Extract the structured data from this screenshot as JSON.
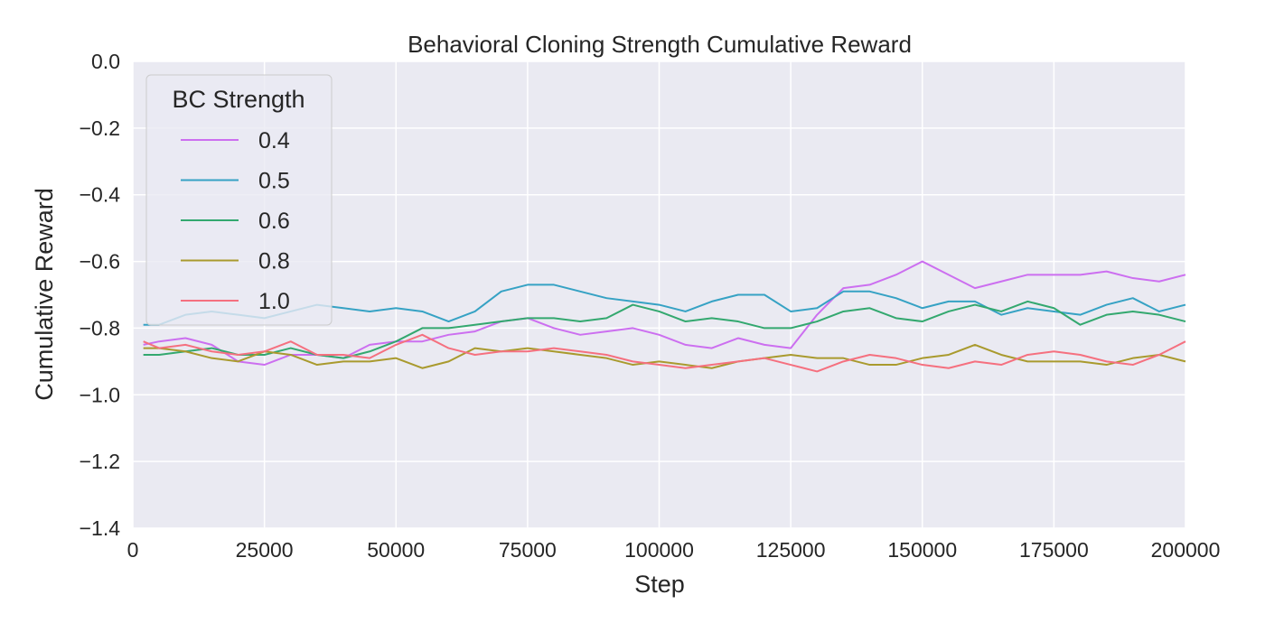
{
  "chart_data": {
    "type": "line",
    "title": "Behavioral Cloning Strength Cumulative Reward",
    "xlabel": "Step",
    "ylabel": "Cumulative Reward",
    "xlim": [
      0,
      200000
    ],
    "ylim": [
      -1.4,
      0.0
    ],
    "xticks": [
      0,
      25000,
      50000,
      75000,
      100000,
      125000,
      150000,
      175000,
      200000
    ],
    "xtick_labels": [
      "0",
      "25000",
      "50000",
      "75000",
      "100000",
      "125000",
      "150000",
      "175000",
      "200000"
    ],
    "yticks": [
      0.0,
      -0.2,
      -0.4,
      -0.6,
      -0.8,
      -1.0,
      -1.2,
      -1.4
    ],
    "ytick_labels": [
      "0.0",
      "−0.2",
      "−0.4",
      "−0.6",
      "−0.8",
      "−1.0",
      "−1.2",
      "−1.4"
    ],
    "grid": true,
    "legend": {
      "title": "BC Strength",
      "placement": "top-left"
    },
    "x": [
      2000,
      5000,
      10000,
      15000,
      20000,
      25000,
      30000,
      35000,
      40000,
      45000,
      50000,
      55000,
      60000,
      65000,
      70000,
      75000,
      80000,
      85000,
      90000,
      95000,
      100000,
      105000,
      110000,
      115000,
      120000,
      125000,
      130000,
      135000,
      140000,
      145000,
      150000,
      155000,
      160000,
      165000,
      170000,
      175000,
      180000,
      185000,
      190000,
      195000,
      200000
    ],
    "series": [
      {
        "name": "0.4",
        "color": "#cc6ff0",
        "values": [
          -0.85,
          -0.84,
          -0.83,
          -0.85,
          -0.9,
          -0.91,
          -0.88,
          -0.88,
          -0.89,
          -0.85,
          -0.84,
          -0.84,
          -0.82,
          -0.81,
          -0.78,
          -0.77,
          -0.8,
          -0.82,
          -0.81,
          -0.8,
          -0.82,
          -0.85,
          -0.86,
          -0.83,
          -0.85,
          -0.86,
          -0.76,
          -0.68,
          -0.67,
          -0.64,
          -0.6,
          -0.64,
          -0.68,
          -0.66,
          -0.64,
          -0.64,
          -0.64,
          -0.63,
          -0.65,
          -0.66,
          -0.64
        ]
      },
      {
        "name": "0.5",
        "color": "#36a2c4",
        "values": [
          -0.79,
          -0.79,
          -0.76,
          -0.75,
          -0.76,
          -0.77,
          -0.75,
          -0.73,
          -0.74,
          -0.75,
          -0.74,
          -0.75,
          -0.78,
          -0.75,
          -0.69,
          -0.67,
          -0.67,
          -0.69,
          -0.71,
          -0.72,
          -0.73,
          -0.75,
          -0.72,
          -0.7,
          -0.7,
          -0.75,
          -0.74,
          -0.69,
          -0.69,
          -0.71,
          -0.74,
          -0.72,
          -0.72,
          -0.76,
          -0.74,
          -0.75,
          -0.76,
          -0.73,
          -0.71,
          -0.75,
          -0.73
        ]
      },
      {
        "name": "0.6",
        "color": "#33a86f",
        "values": [
          -0.88,
          -0.88,
          -0.87,
          -0.86,
          -0.88,
          -0.88,
          -0.86,
          -0.88,
          -0.89,
          -0.87,
          -0.84,
          -0.8,
          -0.8,
          -0.79,
          -0.78,
          -0.77,
          -0.77,
          -0.78,
          -0.77,
          -0.73,
          -0.75,
          -0.78,
          -0.77,
          -0.78,
          -0.8,
          -0.8,
          -0.78,
          -0.75,
          -0.74,
          -0.77,
          -0.78,
          -0.75,
          -0.73,
          -0.75,
          -0.72,
          -0.74,
          -0.79,
          -0.76,
          -0.75,
          -0.76,
          -0.78
        ]
      },
      {
        "name": "0.8",
        "color": "#a99a2e",
        "values": [
          -0.86,
          -0.86,
          -0.87,
          -0.89,
          -0.9,
          -0.87,
          -0.88,
          -0.91,
          -0.9,
          -0.9,
          -0.89,
          -0.92,
          -0.9,
          -0.86,
          -0.87,
          -0.86,
          -0.87,
          -0.88,
          -0.89,
          -0.91,
          -0.9,
          -0.91,
          -0.92,
          -0.9,
          -0.89,
          -0.88,
          -0.89,
          -0.89,
          -0.91,
          -0.91,
          -0.89,
          -0.88,
          -0.85,
          -0.88,
          -0.9,
          -0.9,
          -0.9,
          -0.91,
          -0.89,
          -0.88,
          -0.9
        ]
      },
      {
        "name": "1.0",
        "color": "#f5707f",
        "values": [
          -0.84,
          -0.86,
          -0.85,
          -0.87,
          -0.88,
          -0.87,
          -0.84,
          -0.88,
          -0.88,
          -0.89,
          -0.85,
          -0.82,
          -0.86,
          -0.88,
          -0.87,
          -0.87,
          -0.86,
          -0.87,
          -0.88,
          -0.9,
          -0.91,
          -0.92,
          -0.91,
          -0.9,
          -0.89,
          -0.91,
          -0.93,
          -0.9,
          -0.88,
          -0.89,
          -0.91,
          -0.92,
          -0.9,
          -0.91,
          -0.88,
          -0.87,
          -0.88,
          -0.9,
          -0.91,
          -0.88,
          -0.84
        ]
      }
    ]
  }
}
